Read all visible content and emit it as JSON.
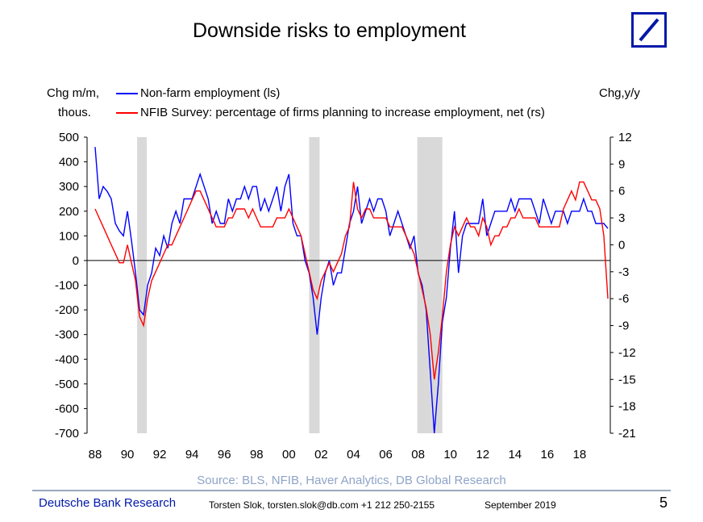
{
  "title": "Downside risks to employment",
  "footer": {
    "source": "Source: BLS, NFIB, Haver Analytics, DB Global Research",
    "brand": "Deutsche Bank Research",
    "author": "Torsten Slok, torsten.slok@db.com  +1 212 250-2155",
    "date": "September 2019",
    "page": "5"
  },
  "logo": {
    "color": "#0018a8"
  },
  "chart_data": {
    "type": "line",
    "title": "Downside risks to employment",
    "left_axis_label": [
      "Chg m/m,",
      "thous."
    ],
    "right_axis_label": "Chg,y/y",
    "x_ticks": [
      "88",
      "90",
      "92",
      "94",
      "96",
      "98",
      "00",
      "02",
      "04",
      "06",
      "08",
      "10",
      "12",
      "14",
      "16",
      "18"
    ],
    "x_range": [
      1987.5,
      2019.9
    ],
    "left_ylim": [
      -700,
      500
    ],
    "left_ticks": [
      500,
      400,
      300,
      200,
      100,
      0,
      -100,
      -200,
      -300,
      -400,
      -500,
      -600,
      -700
    ],
    "right_ylim": [
      -21,
      12
    ],
    "right_ticks": [
      12,
      9,
      6,
      3,
      0,
      -3,
      -6,
      -9,
      -12,
      -15,
      -18,
      -21
    ],
    "grid": false,
    "legend_position": "top",
    "recessions": [
      [
        1990.6,
        1991.2
      ],
      [
        2001.25,
        2001.9
      ],
      [
        2007.95,
        2009.5
      ]
    ],
    "recession_color": "#d9d9d9",
    "x_start": 1988.0,
    "x_step": 0.25,
    "series": [
      {
        "name": "Non-farm employment (ls)",
        "axis": "left",
        "color": "#0000ff",
        "values": [
          460,
          250,
          300,
          280,
          250,
          150,
          120,
          100,
          200,
          80,
          -50,
          -200,
          -220,
          -100,
          -50,
          50,
          20,
          100,
          50,
          150,
          200,
          150,
          250,
          250,
          250,
          300,
          350,
          300,
          250,
          150,
          200,
          150,
          150,
          250,
          200,
          250,
          250,
          300,
          250,
          300,
          300,
          200,
          250,
          200,
          250,
          300,
          200,
          300,
          350,
          150,
          100,
          100,
          0,
          -50,
          -150,
          -300,
          -150,
          -50,
          0,
          -100,
          -50,
          -50,
          50,
          150,
          200,
          300,
          150,
          200,
          250,
          200,
          250,
          250,
          200,
          100,
          150,
          200,
          150,
          100,
          50,
          100,
          -50,
          -100,
          -200,
          -450,
          -700,
          -500,
          -250,
          -150,
          50,
          200,
          -50,
          100,
          150,
          150,
          150,
          150,
          250,
          100,
          150,
          200,
          200,
          200,
          200,
          250,
          200,
          250,
          250,
          250,
          250,
          200,
          150,
          250,
          200,
          150,
          200,
          200,
          200,
          150,
          200,
          200,
          200,
          250,
          200,
          200,
          150,
          150,
          150,
          130
        ]
      },
      {
        "name": "NFIB Survey: percentage of firms planning to increase employment, net (rs)",
        "axis": "right",
        "color": "#ff0000",
        "values": [
          4,
          3,
          2,
          1,
          0,
          -1,
          -2,
          -2,
          0,
          -2,
          -4,
          -8,
          -9,
          -6,
          -4,
          -3,
          -2,
          -1,
          0,
          0,
          1,
          2,
          3,
          4,
          5,
          6,
          6,
          5,
          4,
          3,
          2,
          2,
          2,
          3,
          3,
          4,
          4,
          4,
          3,
          4,
          3,
          2,
          2,
          2,
          2,
          3,
          3,
          3,
          4,
          3,
          2,
          1,
          -1,
          -3,
          -5,
          -6,
          -4,
          -3,
          -2,
          -3,
          -2,
          -1,
          1,
          2,
          7,
          4,
          3,
          4,
          4,
          3,
          3,
          3,
          3,
          2,
          2,
          2,
          2,
          1,
          0,
          -1,
          -3,
          -5,
          -7,
          -10,
          -15,
          -12,
          -8,
          -3,
          0,
          2,
          1,
          2,
          3,
          2,
          2,
          1,
          3,
          2,
          0,
          1,
          1,
          2,
          2,
          3,
          3,
          4,
          3,
          3,
          3,
          3,
          2,
          2,
          2,
          2,
          2,
          2,
          4,
          5,
          6,
          5,
          7,
          7,
          6,
          5,
          5,
          4,
          1,
          -6
        ]
      }
    ]
  }
}
